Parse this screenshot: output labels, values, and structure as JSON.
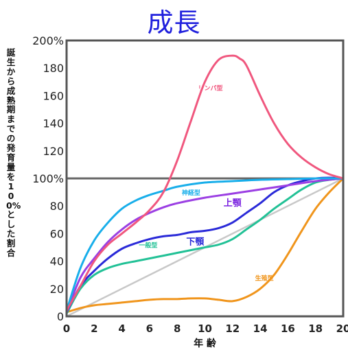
{
  "chart_data": {
    "type": "line",
    "title": "成長",
    "xlabel": "年 齢",
    "ylabel": "誕生から成熟期までの発育量を100%とした割合",
    "xlim": [
      0,
      20
    ],
    "ylim": [
      0,
      200
    ],
    "x_ticks": [
      "0",
      "2",
      "4",
      "6",
      "8",
      "10",
      "12",
      "14",
      "16",
      "18",
      "20"
    ],
    "y_ticks": [
      "0",
      "20",
      "40",
      "60",
      "80",
      "100%",
      "120",
      "140",
      "160",
      "180",
      "200%"
    ],
    "reference_line": 100,
    "series": [
      {
        "name": "リンパ型",
        "color": "#f0577e",
        "x": [
          0,
          1,
          2,
          3,
          4,
          5,
          6,
          7,
          8,
          9,
          10,
          11,
          12,
          12.5,
          13,
          14,
          15,
          16,
          17,
          18,
          19,
          20
        ],
        "values": [
          4,
          22,
          40,
          52,
          60,
          68,
          77,
          90,
          113,
          142,
          170,
          186,
          189,
          187,
          182,
          160,
          140,
          125,
          115,
          108,
          103,
          100
        ]
      },
      {
        "name": "神経型",
        "color": "#18aeea",
        "x": [
          0,
          1,
          2,
          3,
          4,
          5,
          6,
          7,
          8,
          10,
          12,
          14,
          16,
          18,
          20
        ],
        "values": [
          4,
          35,
          55,
          68,
          78,
          84,
          88,
          91,
          94,
          97,
          98,
          99,
          99.5,
          100,
          100
        ]
      },
      {
        "name": "上顎",
        "color": "#9b3fe3",
        "x": [
          0,
          1,
          2,
          3,
          4,
          5,
          6,
          7,
          8,
          10,
          12,
          14,
          16,
          18,
          20
        ],
        "values": [
          3,
          28,
          42,
          54,
          63,
          70,
          75,
          79,
          82,
          86,
          89,
          92,
          95,
          98,
          100
        ]
      },
      {
        "name": "下顎",
        "color": "#2a2ad8",
        "x": [
          0,
          1,
          2,
          3,
          4,
          5,
          6,
          7,
          8,
          9,
          10,
          11,
          12,
          13,
          14,
          15,
          16,
          17,
          18,
          19,
          20
        ],
        "values": [
          3,
          22,
          33,
          42,
          49,
          53,
          56,
          58,
          59,
          61,
          62,
          64,
          68,
          75,
          82,
          90,
          95,
          98,
          100,
          100.5,
          100
        ]
      },
      {
        "name": "一般型",
        "color": "#22c196",
        "x": [
          0,
          1,
          2,
          3,
          4,
          5,
          6,
          7,
          8,
          9,
          10,
          11,
          12,
          13,
          14,
          15,
          16,
          17,
          18,
          19,
          20
        ],
        "values": [
          2,
          20,
          30,
          35,
          38,
          40,
          42,
          44,
          46,
          48,
          50,
          52,
          56,
          63,
          70,
          78,
          85,
          92,
          97,
          99,
          100
        ]
      },
      {
        "name": "生殖型",
        "color": "#f0951c",
        "x": [
          0,
          1,
          2,
          3,
          4,
          5,
          6,
          7,
          8,
          9,
          10,
          11,
          12,
          13,
          14,
          15,
          16,
          17,
          18,
          19,
          20
        ],
        "values": [
          3,
          6,
          8,
          9,
          10,
          11,
          12,
          12.5,
          12.5,
          13,
          13,
          12,
          11,
          14,
          20,
          30,
          45,
          62,
          78,
          90,
          100
        ]
      },
      {
        "name": "",
        "color": "#c8c8c8",
        "x": [
          0,
          20
        ],
        "values": [
          0,
          100
        ]
      }
    ],
    "labels": [
      {
        "text": "リンパ型",
        "x": 10.4,
        "y": 164,
        "color": "#f0577e",
        "size": 9
      },
      {
        "text": "神経型",
        "x": 9.0,
        "y": 88,
        "color": "#18aeea",
        "size": 9
      },
      {
        "text": "上顎",
        "x": 12.0,
        "y": 80,
        "color": "#7a22e0",
        "size": 13
      },
      {
        "text": "下顎",
        "x": 9.3,
        "y": 52,
        "color": "#2a2ad8",
        "size": 13
      },
      {
        "text": "一般型",
        "x": 5.9,
        "y": 50,
        "color": "#22c196",
        "size": 9
      },
      {
        "text": "生殖型",
        "x": 14.3,
        "y": 26,
        "color": "#f0951c",
        "size": 9
      }
    ],
    "grid": false,
    "legend": "none"
  }
}
